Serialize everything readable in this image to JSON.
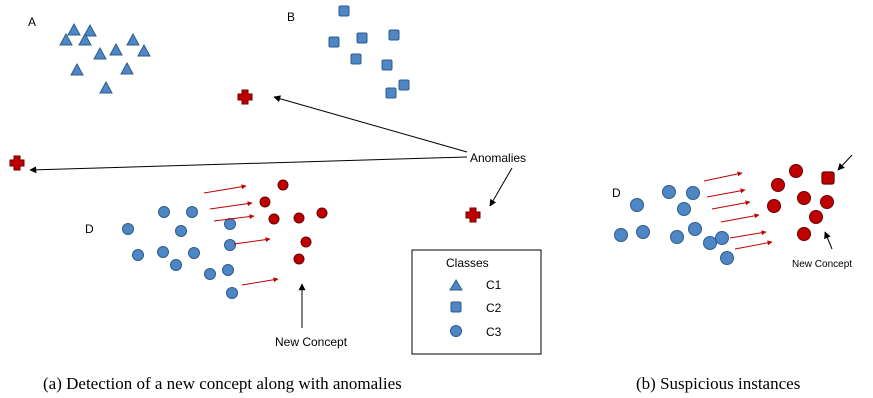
{
  "panel_a": {
    "group_labels": [
      "A",
      "B",
      "D"
    ],
    "anomalies_label": "Anomalies",
    "new_concept_label": "New Concept",
    "legend": {
      "title": "Classes",
      "items": [
        {
          "shape": "triangle",
          "label": "C1"
        },
        {
          "shape": "square",
          "label": "C2"
        },
        {
          "shape": "circle",
          "label": "C3"
        }
      ]
    },
    "caption": "(a) Detection of a new concept along with anomalies"
  },
  "panel_b": {
    "group_labels": [
      "D"
    ],
    "new_concept_label": "New Concept",
    "caption": "(b) Suspicious instances"
  },
  "colors": {
    "class_fill": "#4f86c6",
    "class_stroke": "#2e5c8a",
    "novel_fill": "#c00000",
    "novel_stroke": "#6b0000",
    "arrow_red": "#c00000",
    "arrow_black": "#000000"
  }
}
